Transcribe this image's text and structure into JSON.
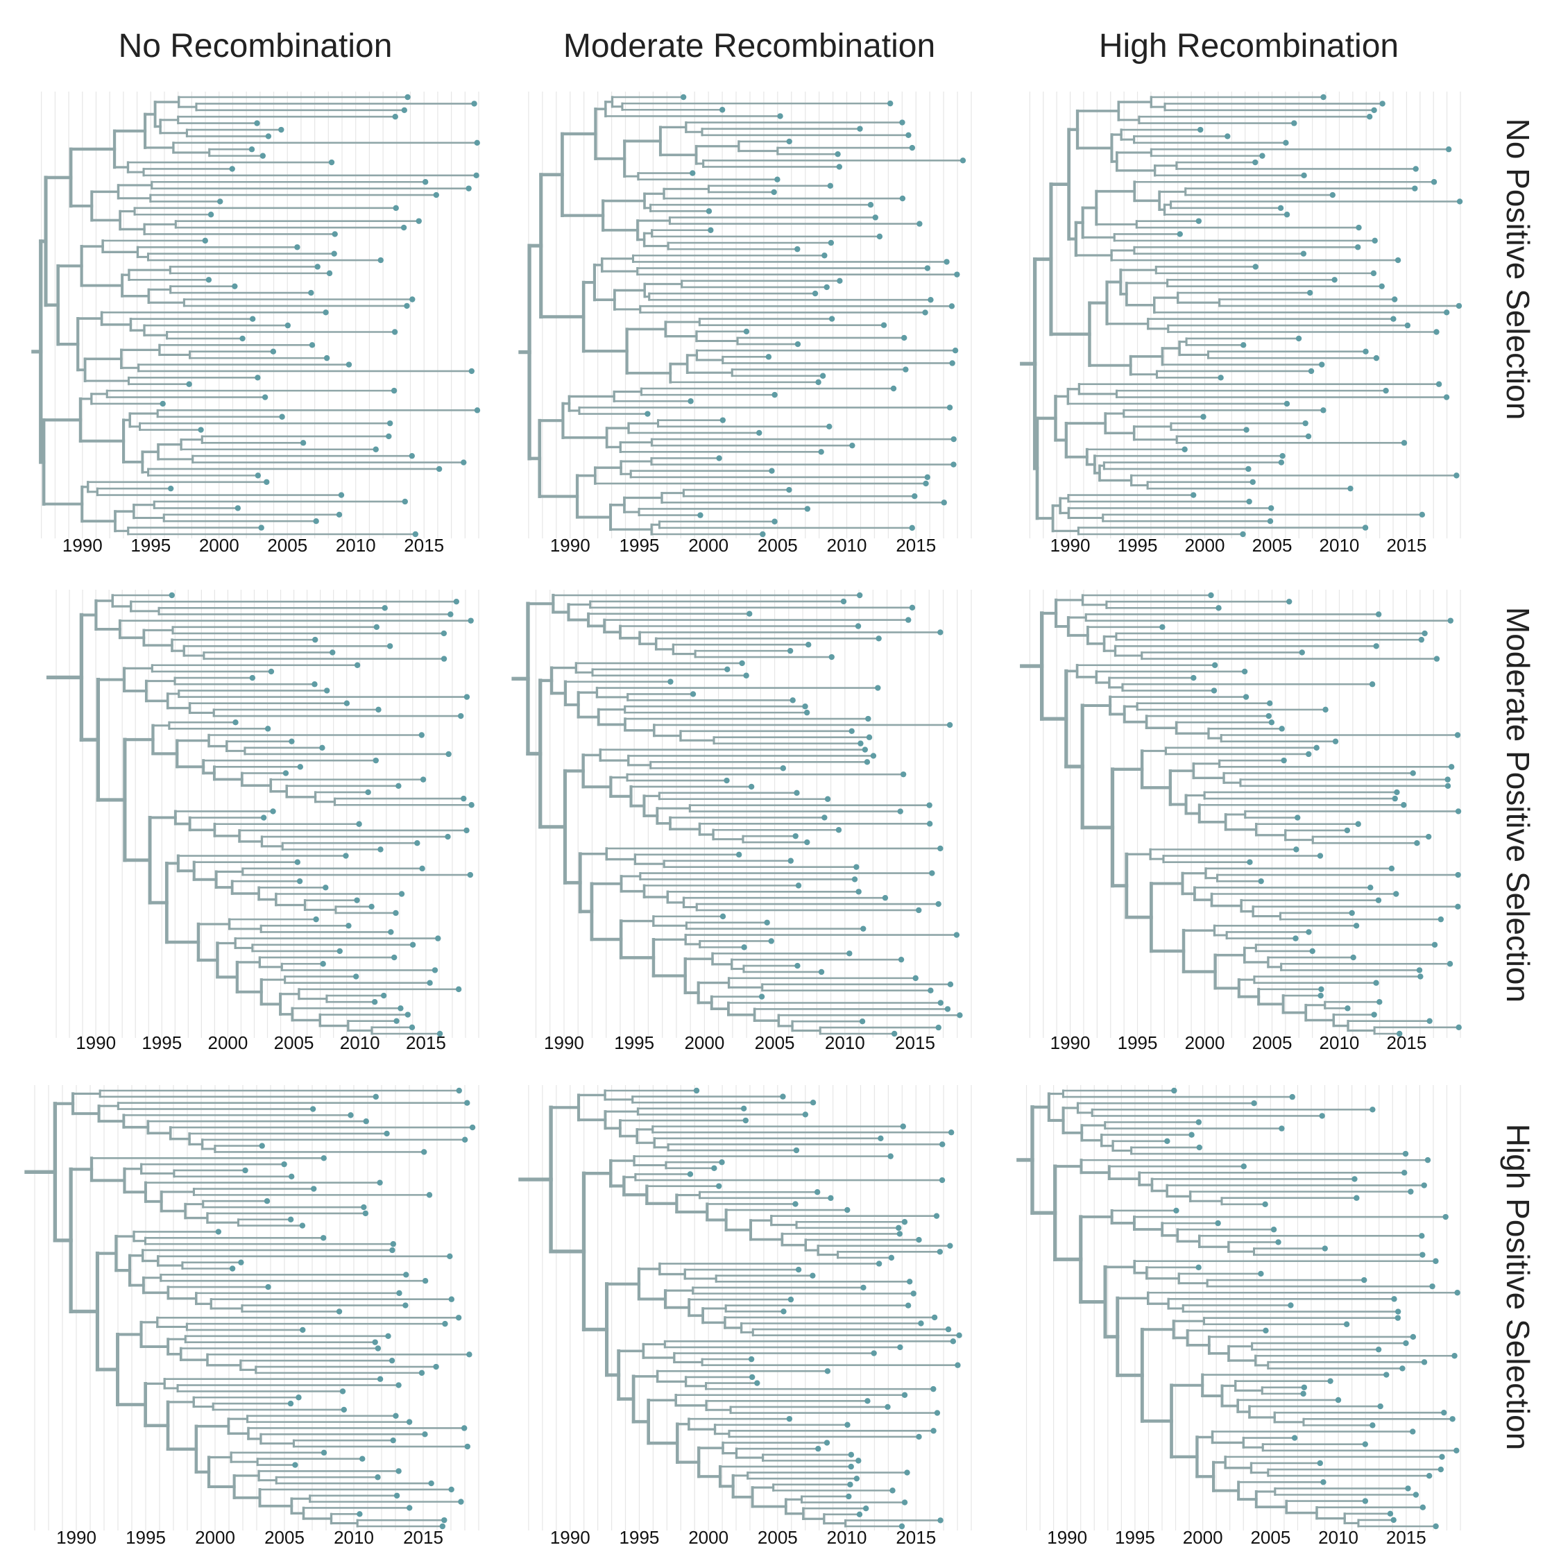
{
  "figure": {
    "column_titles": [
      "No Recombination",
      "Moderate Recombination",
      "High Recombination"
    ],
    "row_titles": [
      "No Positive Selection",
      "Moderate Positive Selection",
      "High Positive Selection"
    ],
    "colors": {
      "branch": "#8fa6a8",
      "tip": "#5f9ca4",
      "grid": "#e6e6e6",
      "text": "#222222"
    }
  },
  "chart_data": {
    "type": "phylogenetic-tree-grid",
    "x_axis": {
      "ticks": [
        1990,
        1995,
        2000,
        2005,
        2010,
        2015
      ],
      "range": [
        1986,
        2019
      ],
      "minor_grid_step_years": 1
    },
    "panels": [
      {
        "row": 0,
        "col": 0,
        "recombination": "No Recombination",
        "selection": "No Positive Selection",
        "tree_shape": "balanced",
        "tips": 68,
        "root_year": 1986.5,
        "last_tip_year": 2019.0,
        "seed": 11
      },
      {
        "row": 0,
        "col": 1,
        "recombination": "Moderate Recombination",
        "selection": "No Positive Selection",
        "tree_shape": "balanced",
        "tips": 70,
        "root_year": 1986.5,
        "last_tip_year": 2019.0,
        "seed": 23
      },
      {
        "row": 0,
        "col": 2,
        "recombination": "High Recombination",
        "selection": "No Positive Selection",
        "tree_shape": "balanced",
        "tips": 68,
        "root_year": 1986.5,
        "last_tip_year": 2019.0,
        "seed": 37
      },
      {
        "row": 1,
        "col": 0,
        "recombination": "No Recombination",
        "selection": "Moderate Positive Selection",
        "tree_shape": "ladder",
        "tips": 70,
        "root_year": 1986.5,
        "last_tip_year": 2018.7,
        "seed": 41
      },
      {
        "row": 1,
        "col": 1,
        "recombination": "Moderate Recombination",
        "selection": "Moderate Positive Selection",
        "tree_shape": "ladder",
        "tips": 72,
        "root_year": 1986.5,
        "last_tip_year": 2018.3,
        "seed": 53
      },
      {
        "row": 1,
        "col": 2,
        "recombination": "High Recombination",
        "selection": "Moderate Positive Selection",
        "tree_shape": "ladder",
        "tips": 70,
        "root_year": 1986.5,
        "last_tip_year": 2019.0,
        "seed": 67
      },
      {
        "row": 2,
        "col": 0,
        "recombination": "No Recombination",
        "selection": "High Positive Selection",
        "tree_shape": "ladder",
        "tips": 72,
        "root_year": 1986.5,
        "last_tip_year": 2018.8,
        "seed": 71
      },
      {
        "row": 2,
        "col": 1,
        "recombination": "Moderate Recombination",
        "selection": "High Positive Selection",
        "tree_shape": "ladder",
        "tips": 74,
        "root_year": 1986.5,
        "last_tip_year": 2018.8,
        "seed": 83
      },
      {
        "row": 2,
        "col": 2,
        "recombination": "High Recombination",
        "selection": "High Positive Selection",
        "tree_shape": "ladder",
        "tips": 70,
        "root_year": 1986.5,
        "last_tip_year": 2018.8,
        "seed": 97
      }
    ]
  }
}
